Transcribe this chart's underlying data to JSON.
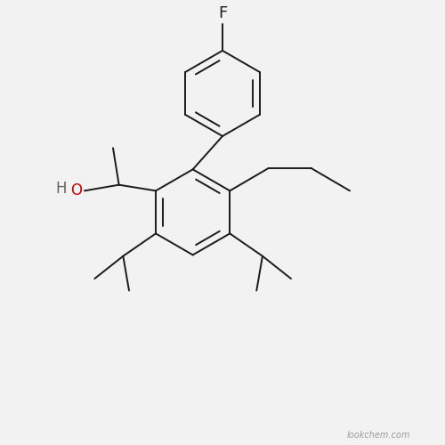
{
  "background_color": "#f2f2f2",
  "line_color": "#1a1a1a",
  "label_color_F": "#1a1a1a",
  "label_color_O": "#cc0000",
  "label_color_H": "#606060",
  "line_width": 1.4,
  "font_size": 12,
  "watermark": "lookchem.com",
  "xlim": [
    -2.8,
    3.8
  ],
  "ylim": [
    -3.6,
    3.8
  ]
}
